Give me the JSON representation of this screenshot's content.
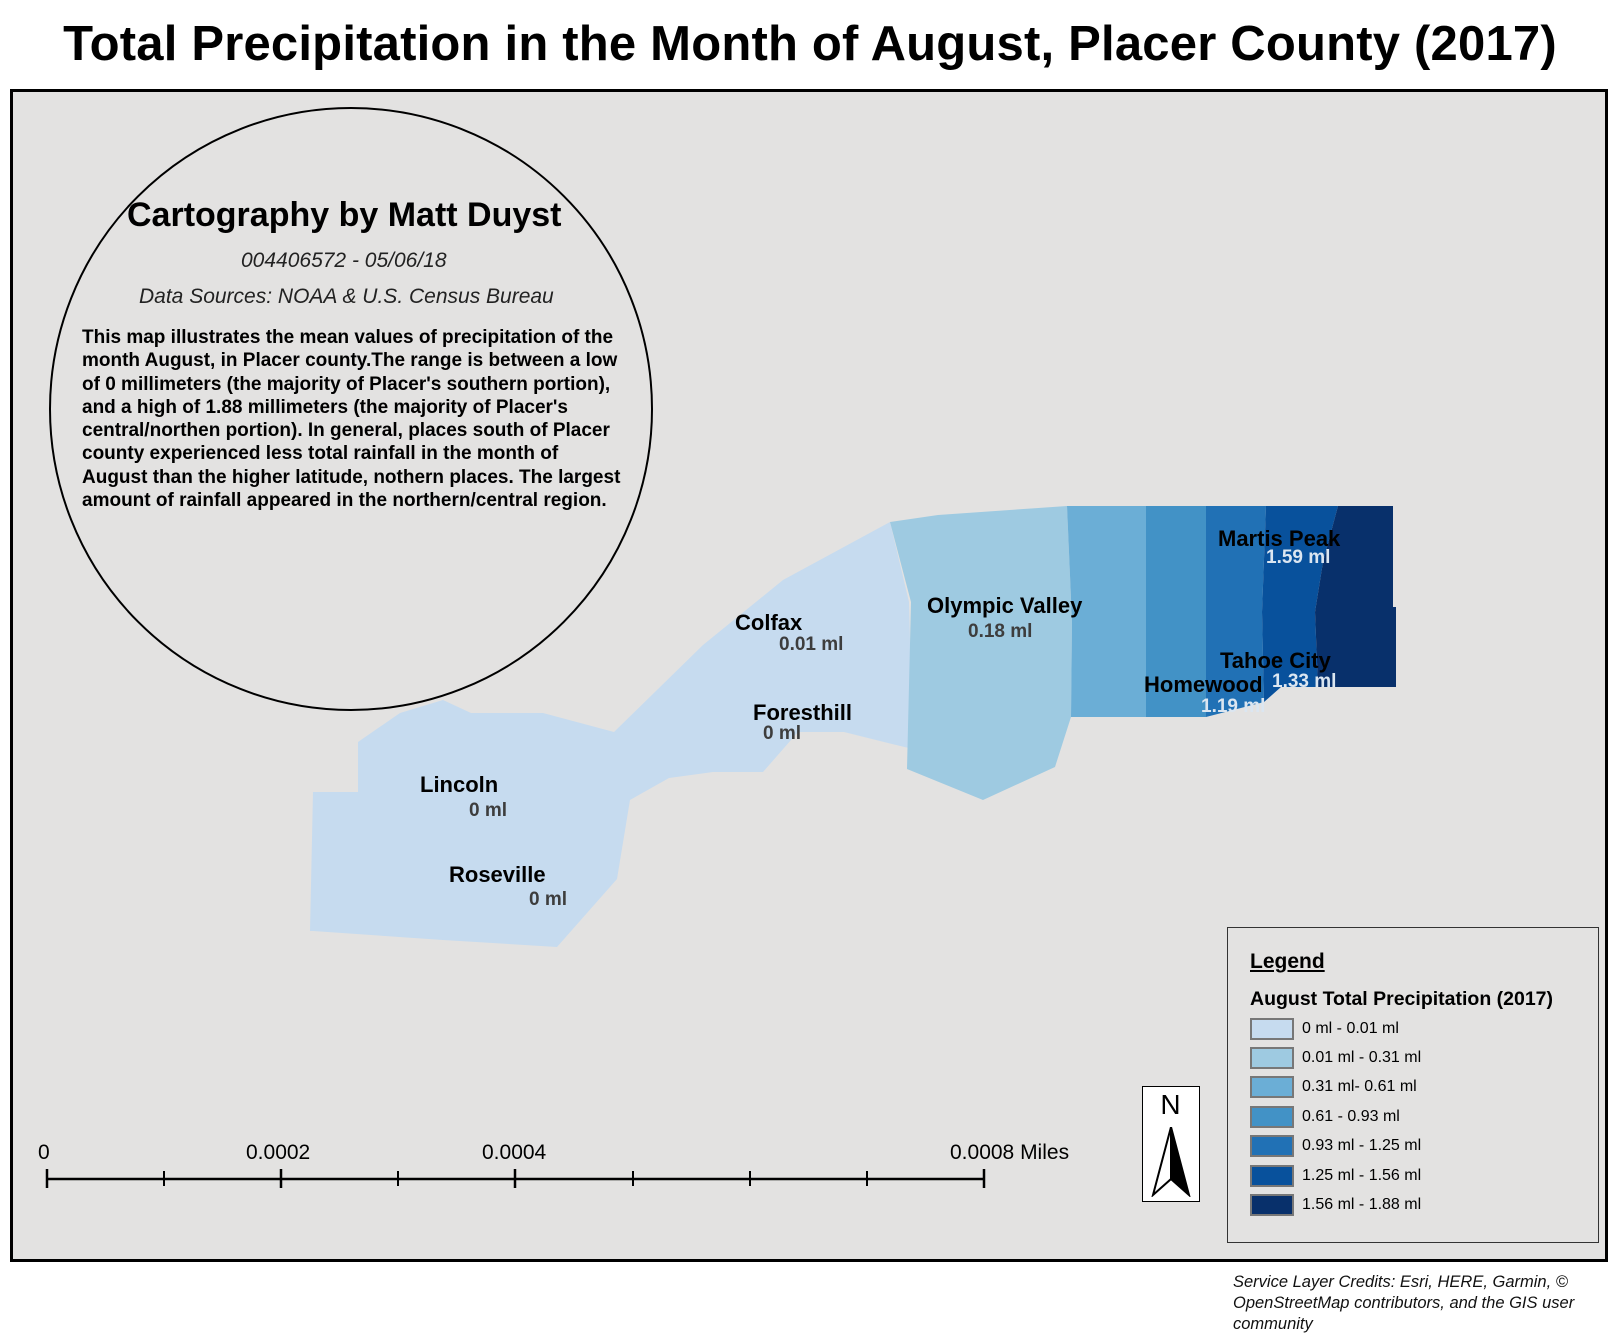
{
  "title": "Total Precipitation in the Month of August, Placer County (2017)",
  "credit": {
    "heading": "Cartography by Matt Duyst",
    "id_date": "004406572 - 05/06/18",
    "sources": "Data Sources: NOAA & U.S. Census Bureau"
  },
  "description": "This map illustrates the mean values of precipitation of the month August, in Placer county.The range is between a low of 0 millimeters (the majority of Placer's southern portion), and a high of 1.88 millimeters (the majority of Placer's central/northen portion). In general, places south of Placer county experienced less total rainfall in the month of August than the higher latitude, nothern places. The largest amount of rainfall appeared in the northern/central region.",
  "places": [
    {
      "name": "Colfax",
      "value": "0.01 ml"
    },
    {
      "name": "Foresthill",
      "value": "0 ml"
    },
    {
      "name": "Lincoln",
      "value": "0 ml"
    },
    {
      "name": "Roseville",
      "value": "0 ml"
    },
    {
      "name": "Olympic Valley",
      "value": "0.18 ml"
    },
    {
      "name": "Martis Peak",
      "value": "1.59 ml"
    },
    {
      "name": "Tahoe City",
      "value": "1.33 ml"
    },
    {
      "name": "Homewood",
      "value": "1.19 ml"
    }
  ],
  "legend": {
    "title": "Legend",
    "subtitle": "August Total Precipitation (2017)",
    "items": [
      {
        "label": "0 ml - 0.01 ml",
        "color": "#c6dbef"
      },
      {
        "label": "0.01 ml - 0.31 ml",
        "color": "#9ecae1"
      },
      {
        "label": "0.31 ml- 0.61 ml",
        "color": "#6baed6"
      },
      {
        "label": "0.61 - 0.93 ml",
        "color": "#4292c6"
      },
      {
        "label": "0.93 ml - 1.25 ml",
        "color": "#2171b5"
      },
      {
        "label": "1.25 ml - 1.56 ml",
        "color": "#08519c"
      },
      {
        "label": "1.56 ml - 1.88 ml",
        "color": "#08306b"
      }
    ]
  },
  "north_label": "N",
  "scale_bar": {
    "labels": [
      "0",
      "0.0002",
      "0.0004",
      "0.0008 Miles"
    ]
  },
  "layer_credits": "Service Layer Credits: Esri, HERE, Garmin, © OpenStreetMap contributors, and the GIS user community",
  "colors": {
    "map_background": "#e3e2e1",
    "value_text_dark": "#3d3d3d",
    "value_text_light": "#dbe6f1"
  }
}
